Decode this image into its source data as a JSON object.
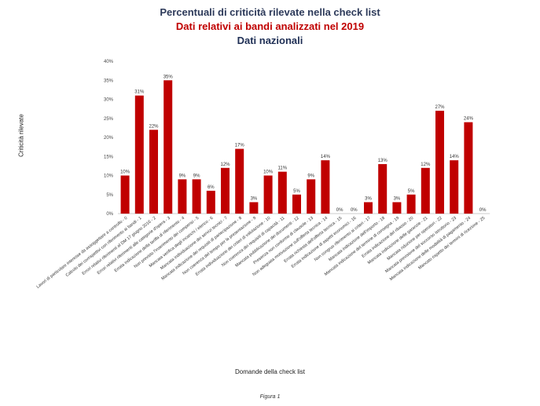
{
  "chart_data": {
    "type": "bar",
    "title": "Percentuali di criticità rilevate nella check list",
    "subtitle": "Dati relativi ai bandi analizzati nel 2019",
    "subtitle2": "Dati nazionali",
    "xlabel": "Domande della check list",
    "ylabel": "Criticità rilevate",
    "caption": "Figura 1",
    "ylim": [
      0,
      40
    ],
    "yticks": [
      "0%",
      "5%",
      "10%",
      "15%",
      "20%",
      "25%",
      "30%",
      "35%",
      "40%"
    ],
    "grid": false,
    "legend": "none",
    "bar_color": "#c00000",
    "categories": [
      "Lavori di particolare interesse da assoggettare a controllo - 0",
      "Calcolo dei corrispettivi con riferimento ai bandi - 1",
      "Errori relativi riferimenti al DM 17 giugno 2016 - 2",
      "Errori relativi riferimenti alle categorie d'opera - 3",
      "Errata indicazione della tariffa di riferimento - 4",
      "Non previsto l'inserimento dei compensi - 5",
      "Mancata verifica degli incarichi / elenco - 6",
      "Mancata individuazione dei servizi tecnici - 7",
      "Mancata indicazione dei requisiti di partecipazione - 8",
      "Non coerenza del tempo per la presentazione - 9",
      "Errata individuazione dei criteri di valutazione - 10",
      "Non coerenza dei requisiti di capacità - 11",
      "Mancata pubblicazione dei documenti - 12",
      "Presenza non conforme di clausole - 13",
      "Non adeguata motivazione sull'offerta tecnica - 14",
      "Errata richiesta dell'offerta tecnica - 15",
      "Errata indicazione di aspetti economici - 16",
      "Non congruo riferimento ai criteri - 17",
      "Mancata indicazione dell'importo - 18",
      "Mancata indicazione del termine di consegna - 19",
      "Errata indicazione del ribasso - 20",
      "Mancata indicazione delle garanzie - 21",
      "Mancata riduzione per operatori - 22",
      "Mancata previsione del soccorso istruttorio - 23",
      "Mancata indicazione delle modalità di pagamento - 24",
      "Mancato rispetto dei termini di ricezione - 25"
    ],
    "values": [
      10,
      31,
      22,
      35,
      9,
      9,
      6,
      12,
      17,
      3,
      10,
      11,
      5,
      9,
      14,
      0,
      0,
      3,
      13,
      3,
      5,
      12,
      27,
      14,
      24,
      0
    ],
    "value_labels": [
      "10%",
      "31%",
      "22%",
      "35%",
      "9%",
      "9%",
      "6%",
      "12%",
      "17%",
      "3%",
      "10%",
      "11%",
      "5%",
      "9%",
      "14%",
      "0%",
      "0%",
      "3%",
      "13%",
      "3%",
      "5%",
      "12%",
      "27%",
      "14%",
      "24%",
      "0%"
    ]
  }
}
